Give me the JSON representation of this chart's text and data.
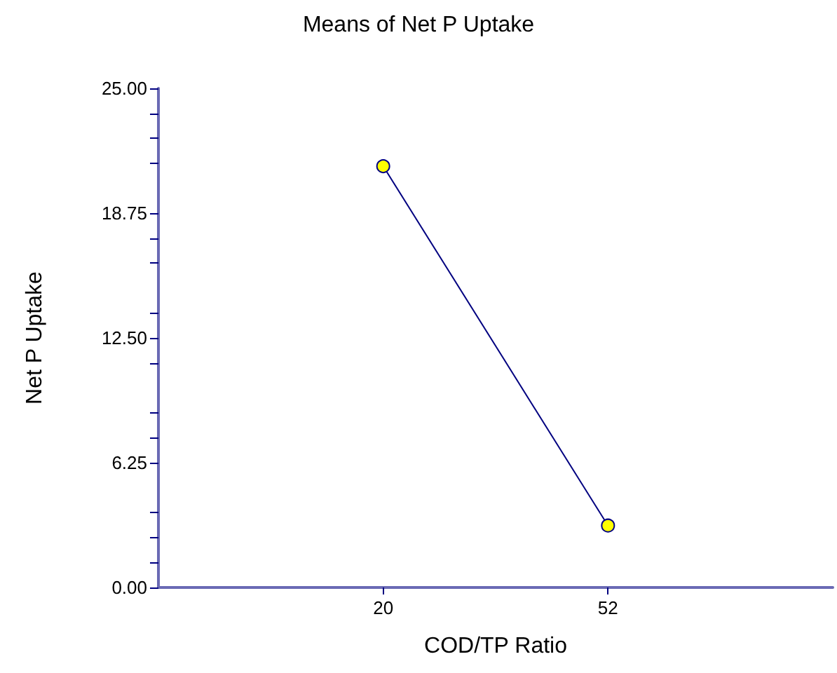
{
  "chart_data": {
    "type": "line",
    "title": "Means of Net P Uptake",
    "xlabel": "COD/TP Ratio",
    "ylabel": "Net P Uptake",
    "categories": [
      null,
      "20",
      "52",
      null
    ],
    "series": [
      {
        "color": "#000080",
        "values": [
          null,
          21.1,
          3.1,
          null
        ]
      }
    ],
    "ylim": [
      0,
      25
    ],
    "yticks": [
      {
        "value": 0,
        "label": "0.00"
      },
      {
        "value": 6.25,
        "label": "6.25"
      },
      {
        "value": 12.5,
        "label": "12.50"
      },
      {
        "value": 18.75,
        "label": "18.75"
      },
      {
        "value": 25,
        "label": "25.00"
      }
    ],
    "grid": false,
    "marker": "circle",
    "line_style": "solid"
  }
}
